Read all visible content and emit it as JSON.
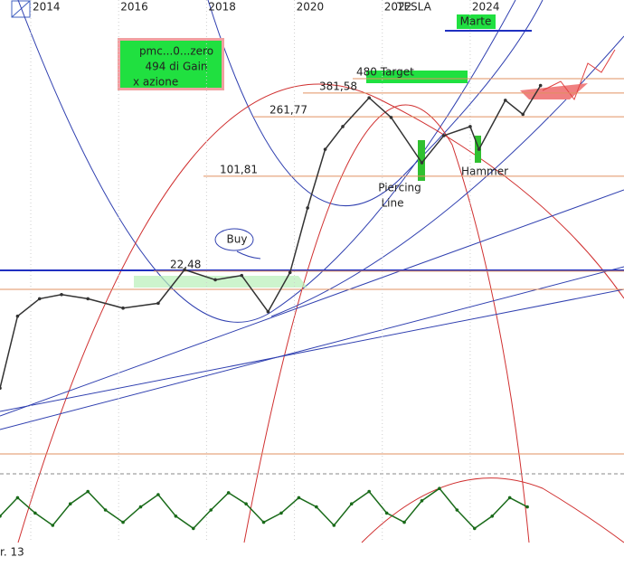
{
  "chart_data": [
    {
      "type": "line",
      "title": "TESLA",
      "subtitle": "Marte",
      "xlim": [
        2013.3,
        2027.5
      ],
      "xticks": [
        2014,
        2016,
        2018,
        2020,
        2022,
        2024
      ],
      "ylim": [
        0.95,
        1675
      ],
      "log": true,
      "x": [
        2013.3,
        2013.7,
        2014.2,
        2014.7,
        2015.3,
        2016.1,
        2016.9,
        2017.5,
        2018.2,
        2018.8,
        2019.4,
        2019.9,
        2020.3,
        2020.7,
        2021.1,
        2021.7,
        2022.2,
        2022.9,
        2023.4,
        2024.0,
        2024.2,
        2024.8,
        2025.2,
        2025.6
      ],
      "series": [
        {
          "color": "#333333",
          "values": [
            3.5,
            11,
            14.5,
            15.5,
            14.5,
            12.5,
            13.5,
            23,
            19.6,
            21,
            11.8,
            22,
            61.5,
            156,
            224,
            354,
            259,
            126,
            194,
            224,
            156,
            340,
            272,
            430
          ]
        }
      ],
      "levels": [
        {
          "value": 22.48,
          "label": "22,48"
        },
        {
          "value": 101.81,
          "label": "101,81"
        },
        {
          "value": 261.77,
          "label": "261,77"
        },
        {
          "value": 381.58,
          "label": "381,58"
        },
        {
          "value": 480,
          "label": "480 Target"
        }
      ],
      "annotations": [
        "Buy",
        "Piercing",
        "Line",
        "Hammer"
      ],
      "note": [
        "pmc...0...zero",
        "494 di Gain",
        "x azione"
      ]
    },
    {
      "type": "line",
      "xlim": [
        2013.3,
        2027.5
      ],
      "ylim": [
        0,
        100
      ],
      "color": "#1a6b1a",
      "x": [
        2013.3,
        2013.7,
        2014.1,
        2014.5,
        2014.9,
        2015.3,
        2015.7,
        2016.1,
        2016.5,
        2016.9,
        2017.3,
        2017.7,
        2018.1,
        2018.5,
        2018.9,
        2019.3,
        2019.7,
        2020.1,
        2020.5,
        2020.9,
        2021.3,
        2021.7,
        2022.1,
        2022.5,
        2022.9,
        2023.3,
        2023.7,
        2024.1,
        2024.5,
        2024.9,
        2025.3
      ],
      "values": [
        40,
        70,
        45,
        25,
        60,
        80,
        50,
        30,
        55,
        75,
        40,
        20,
        50,
        78,
        60,
        30,
        45,
        70,
        55,
        25,
        60,
        80,
        45,
        30,
        65,
        85,
        50,
        20,
        40,
        70,
        55
      ]
    }
  ],
  "footer": "r. 13"
}
